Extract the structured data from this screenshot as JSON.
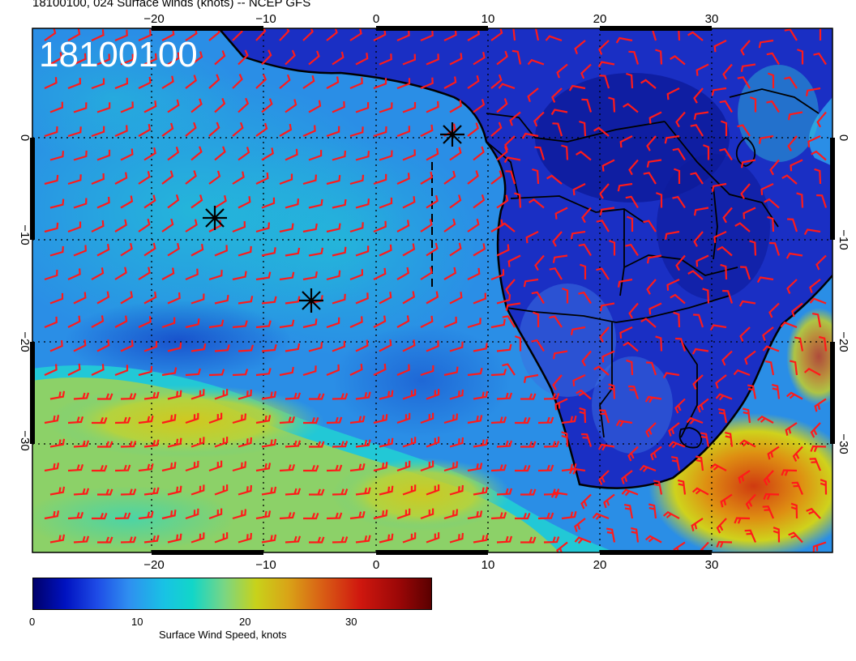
{
  "header": {
    "title": "18100100, 024 Surface winds (knots) -- NCEP GFS"
  },
  "map": {
    "timestamp_label": "18100100",
    "lon_ticks": [
      "−20",
      "−10",
      "0",
      "10",
      "20",
      "30"
    ],
    "lat_ticks": [
      "0",
      "−10",
      "−20",
      "−30"
    ],
    "colors": {
      "barb": "#ff1a1a",
      "outline": "#000000",
      "timestamp_text": "#ffffff"
    },
    "markers": [
      "asterisk",
      "asterisk",
      "asterisk"
    ]
  },
  "colorbar": {
    "ticks": [
      "0",
      "10",
      "20",
      "30"
    ],
    "label": "Surface Wind Speed, knots"
  }
}
